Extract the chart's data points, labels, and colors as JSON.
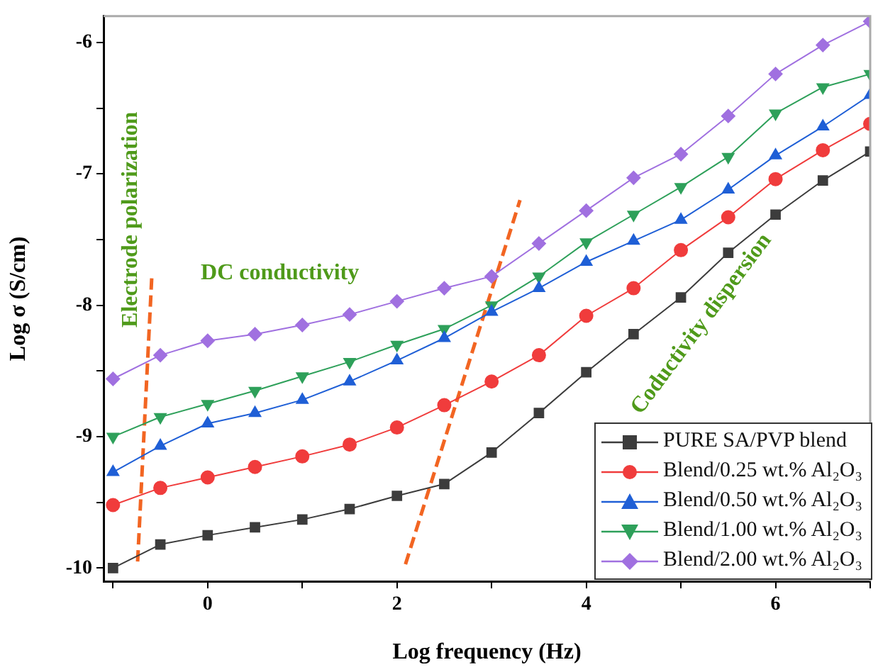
{
  "chart_data": {
    "type": "line",
    "xlabel": "Log frequency (Hz)",
    "ylabel": "Log σ (S/cm)",
    "x": [
      -1,
      -0.5,
      0,
      0.5,
      1,
      1.5,
      2,
      2.5,
      3,
      3.5,
      4,
      4.5,
      5,
      5.5,
      6,
      6.5,
      7
    ],
    "xlim": [
      -1.1,
      7
    ],
    "ylim": [
      -10.1,
      -5.8
    ],
    "xticks": [
      {
        "value": -1,
        "label": null
      },
      0,
      {
        "value": 1,
        "label": null
      },
      2,
      {
        "value": 3,
        "label": null
      },
      4,
      {
        "value": 5,
        "label": null
      },
      6,
      {
        "value": 7,
        "label": null
      }
    ],
    "yticks": [
      -10,
      {
        "value": -9.5,
        "label": null
      },
      -9,
      {
        "value": -8.5,
        "label": null
      },
      -8,
      {
        "value": -7.5,
        "label": null
      },
      -7,
      {
        "value": -6.5,
        "label": null
      },
      -6
    ],
    "grid": false,
    "legend": "bottom right",
    "line_style": "solid",
    "series": [
      {
        "name": "PURE SA/PVP blend",
        "color": "#3c3c3c",
        "marker": "square",
        "values": [
          -10.0,
          -9.82,
          -9.75,
          -9.69,
          -9.63,
          -9.55,
          -9.45,
          -9.36,
          -9.12,
          -8.82,
          -8.51,
          -8.22,
          -7.94,
          -7.6,
          -7.31,
          -7.05,
          -6.83
        ]
      },
      {
        "name": "Blend/0.25 wt.% Al₂O₃",
        "color": "#f03c3c",
        "marker": "circle",
        "values": [
          -9.52,
          -9.39,
          -9.31,
          -9.23,
          -9.15,
          -9.06,
          -8.93,
          -8.76,
          -8.58,
          -8.38,
          -8.08,
          -7.87,
          -7.58,
          -7.33,
          -7.04,
          -6.82,
          -6.62
        ]
      },
      {
        "name": "Blend/0.50 wt.% Al₂O₃",
        "color": "#1f5fd6",
        "marker": "triangle",
        "values": [
          -9.27,
          -9.07,
          -8.9,
          -8.82,
          -8.72,
          -8.58,
          -8.42,
          -8.25,
          -8.05,
          -7.87,
          -7.67,
          -7.51,
          -7.35,
          -7.12,
          -6.86,
          -6.64,
          -6.4
        ]
      },
      {
        "name": "Blend/1.00 wt.% Al₂O₃",
        "color": "#2ea05a",
        "marker": "triangle-down",
        "values": [
          -9.0,
          -8.85,
          -8.75,
          -8.65,
          -8.54,
          -8.43,
          -8.3,
          -8.18,
          -8.0,
          -7.78,
          -7.52,
          -7.31,
          -7.1,
          -6.87,
          -6.54,
          -6.34,
          -6.24
        ]
      },
      {
        "name": "Blend/2.00 wt.% Al₂O₃",
        "color": "#a070e0",
        "marker": "diamond",
        "values": [
          -8.56,
          -8.38,
          -8.27,
          -8.22,
          -8.15,
          -8.07,
          -7.97,
          -7.87,
          -7.78,
          -7.53,
          -7.28,
          -7.03,
          -6.85,
          -6.56,
          -6.24,
          -6.02,
          -5.84
        ]
      },
      {
        "type": "line",
        "color": "#f26522",
        "marker": "none",
        "line_style": "dashed",
        "x": [
          -0.74,
          -0.59
        ],
        "values": [
          -9.95,
          -7.78
        ]
      },
      {
        "type": "line",
        "color": "#f26522",
        "marker": "none",
        "line_style": "dashed",
        "x": [
          2.09,
          3.3
        ],
        "values": [
          -9.97,
          -7.2
        ]
      }
    ],
    "annotations": [
      "Electrode polarization",
      "DC conductivity",
      "Coductivity dispersion"
    ]
  }
}
